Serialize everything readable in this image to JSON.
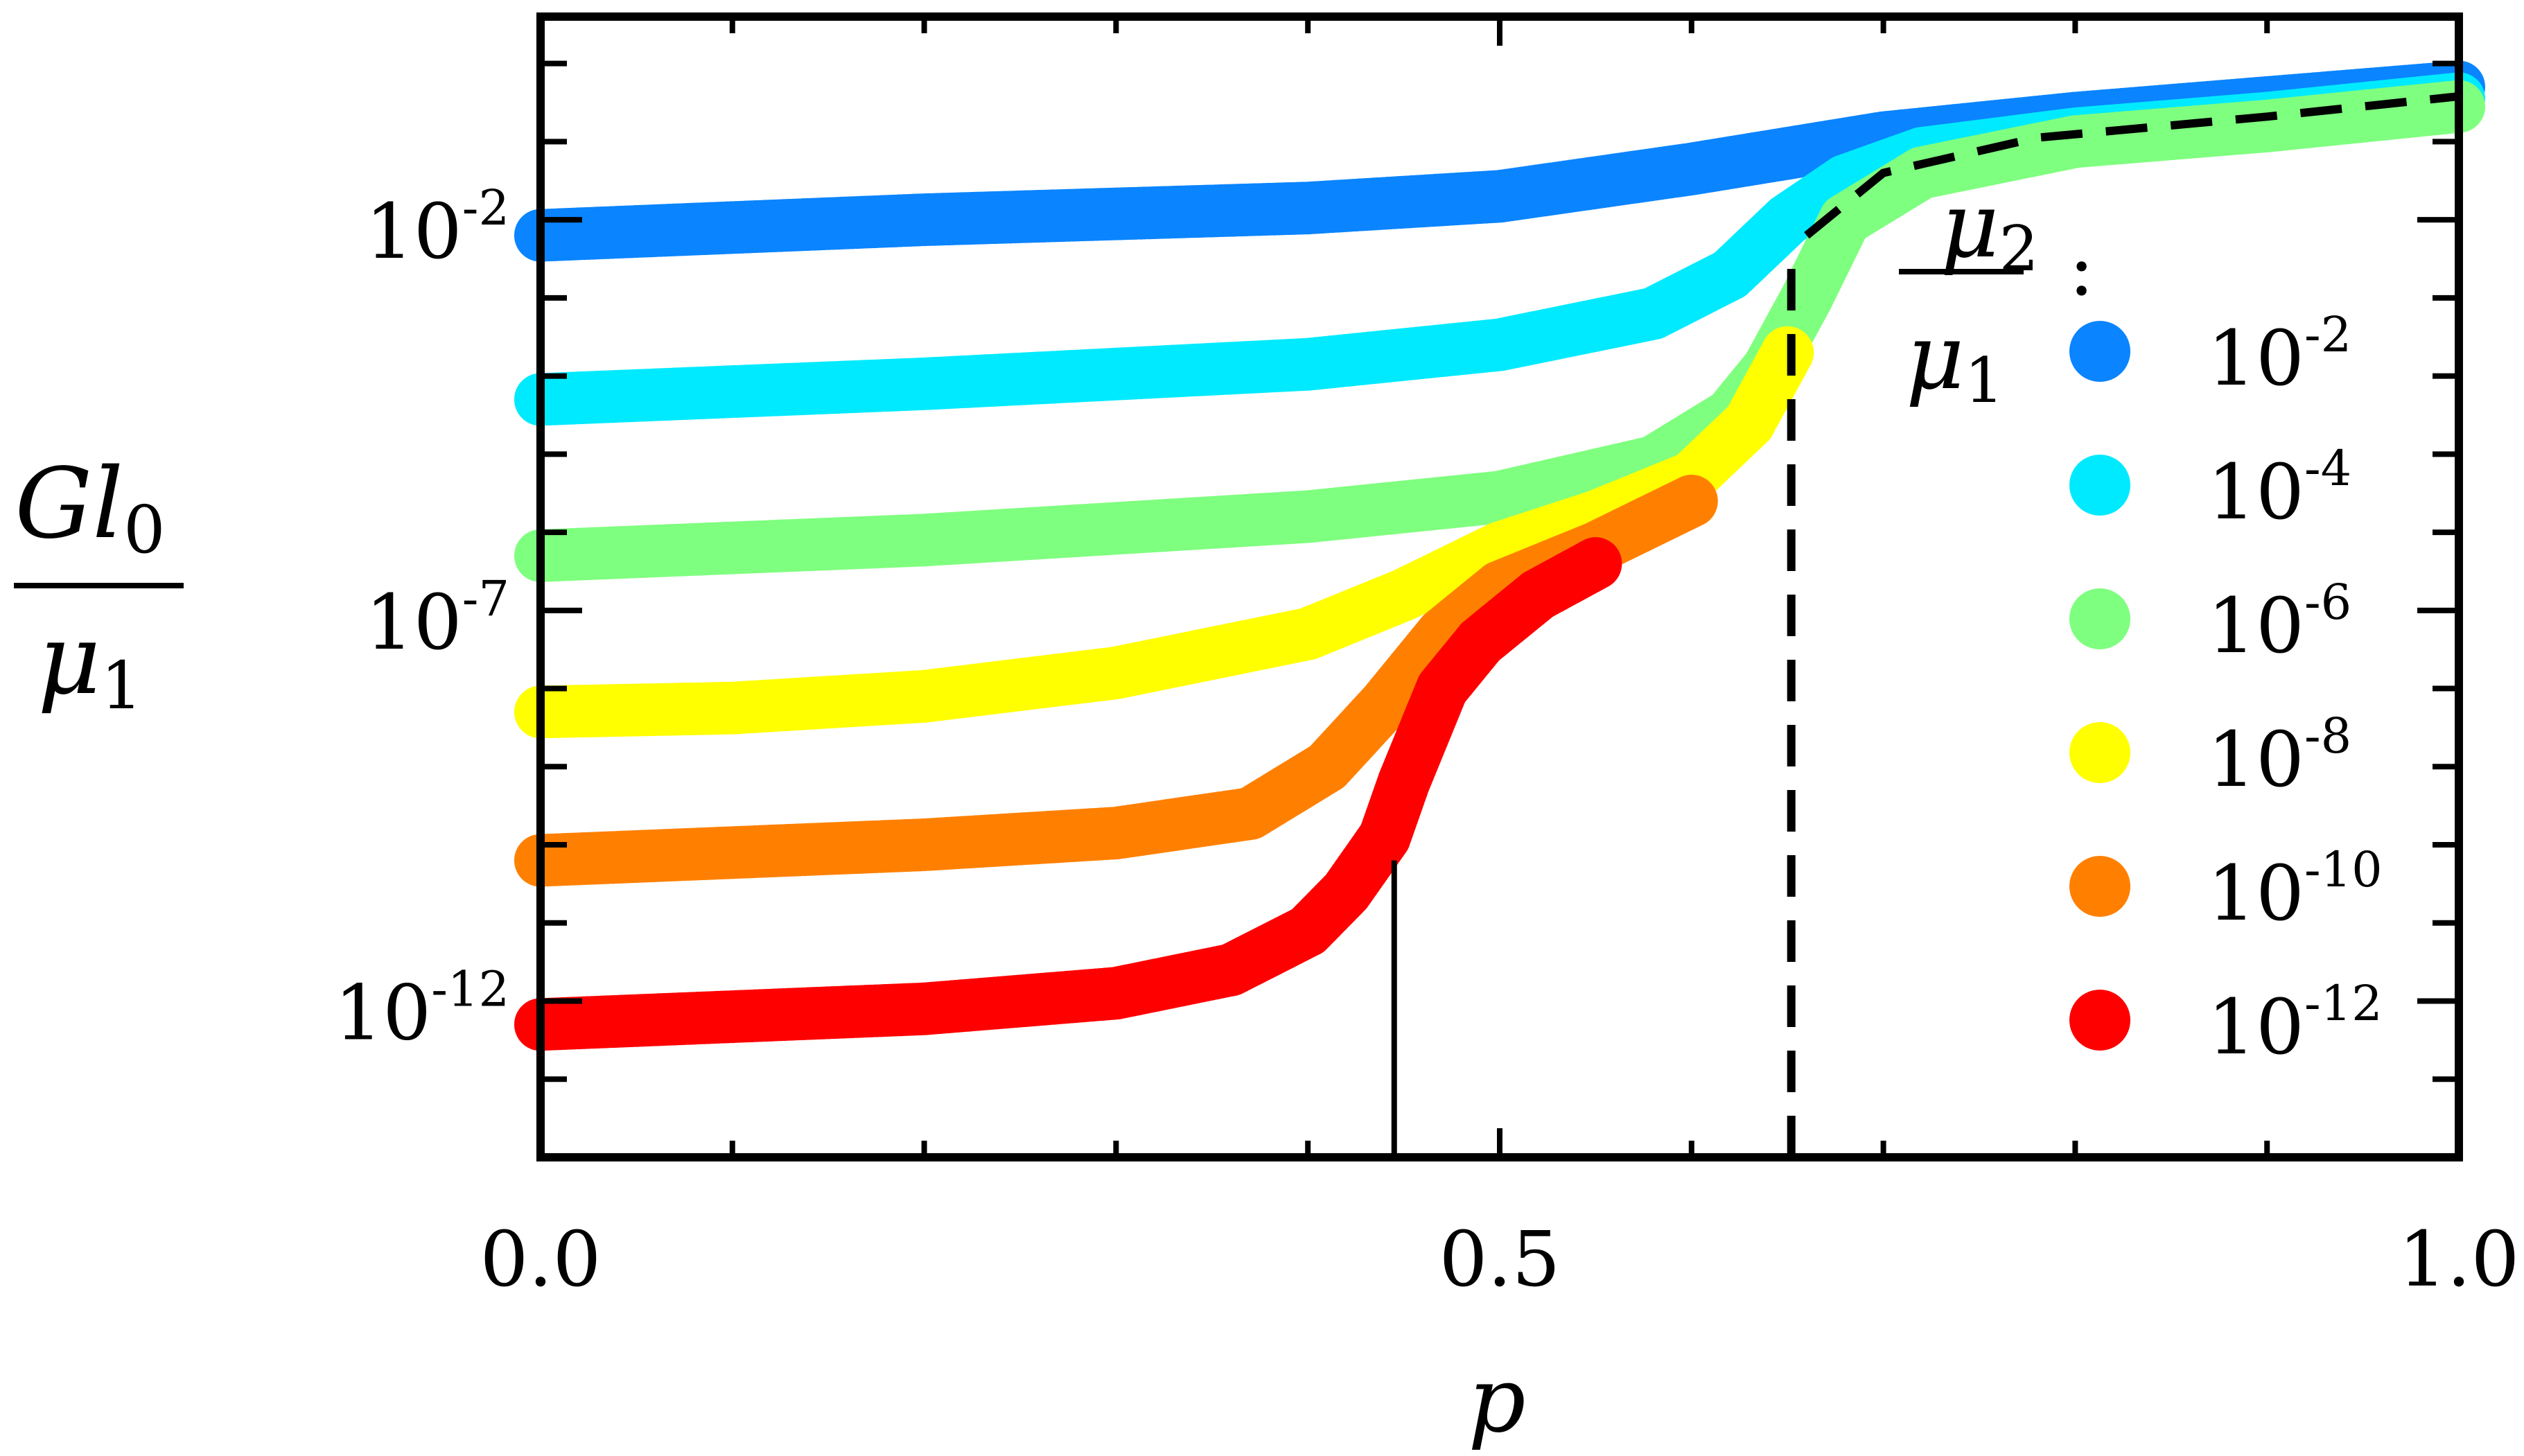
{
  "chart_data": {
    "type": "scatter",
    "xlabel": "p",
    "ylabel_numerator": "Gl",
    "ylabel_numerator_sub": "0",
    "ylabel_denominator": "μ",
    "ylabel_denominator_sub": "1",
    "yscale": "log",
    "xlim": [
      0.0,
      1.0
    ],
    "ylim_log10": [
      -14.0,
      0.6
    ],
    "xticks": [
      {
        "value": 0.0,
        "label": "0.0"
      },
      {
        "value": 0.5,
        "label": "0.5"
      },
      {
        "value": 1.0,
        "label": "1.0"
      }
    ],
    "yticks": [
      {
        "exp": -12,
        "label_base": "10",
        "label_exp": "-12"
      },
      {
        "exp": -7,
        "label_base": "10",
        "label_exp": "-7"
      },
      {
        "exp": -2,
        "label_base": "10",
        "label_exp": "-2"
      }
    ],
    "legend": {
      "title_numerator": "μ",
      "title_numerator_sub": "2",
      "title_denominator": "μ",
      "title_denominator_sub": "1",
      "title_suffix": ":",
      "placement": "right"
    },
    "series": [
      {
        "name_base": "10",
        "name_exp": "-2",
        "color": "#0a84ff",
        "points": [
          [
            0.0,
            -2.2
          ],
          [
            0.2,
            -2.0
          ],
          [
            0.4,
            -1.85
          ],
          [
            0.5,
            -1.7
          ],
          [
            0.6,
            -1.35
          ],
          [
            0.65,
            -1.15
          ],
          [
            0.7,
            -0.95
          ],
          [
            0.8,
            -0.7
          ],
          [
            0.9,
            -0.5
          ],
          [
            1.0,
            -0.3
          ]
        ]
      },
      {
        "name_base": "10",
        "name_exp": "-4",
        "color": "#00eaff",
        "points": [
          [
            0.0,
            -4.3
          ],
          [
            0.2,
            -4.1
          ],
          [
            0.4,
            -3.85
          ],
          [
            0.5,
            -3.6
          ],
          [
            0.58,
            -3.2
          ],
          [
            0.62,
            -2.7
          ],
          [
            0.65,
            -2.0
          ],
          [
            0.68,
            -1.5
          ],
          [
            0.72,
            -1.15
          ],
          [
            0.8,
            -0.9
          ],
          [
            0.9,
            -0.7
          ],
          [
            1.0,
            -0.45
          ]
        ]
      },
      {
        "name_base": "10",
        "name_exp": "-6",
        "color": "#7fff7f",
        "points": [
          [
            0.0,
            -6.3
          ],
          [
            0.2,
            -6.1
          ],
          [
            0.4,
            -5.8
          ],
          [
            0.5,
            -5.55
          ],
          [
            0.58,
            -5.1
          ],
          [
            0.62,
            -4.5
          ],
          [
            0.64,
            -3.9
          ],
          [
            0.66,
            -3.0
          ],
          [
            0.68,
            -2.0
          ],
          [
            0.72,
            -1.4
          ],
          [
            0.8,
            -1.0
          ],
          [
            0.9,
            -0.8
          ],
          [
            1.0,
            -0.55
          ]
        ]
      },
      {
        "name_base": "10",
        "name_exp": "-8",
        "color": "#ffff00",
        "points": [
          [
            0.0,
            -8.3
          ],
          [
            0.1,
            -8.25
          ],
          [
            0.2,
            -8.1
          ],
          [
            0.3,
            -7.8
          ],
          [
            0.4,
            -7.3
          ],
          [
            0.45,
            -6.8
          ],
          [
            0.5,
            -6.2
          ],
          [
            0.55,
            -5.8
          ],
          [
            0.6,
            -5.3
          ],
          [
            0.63,
            -4.6
          ],
          [
            0.65,
            -3.7
          ]
        ]
      },
      {
        "name_base": "10",
        "name_exp": "-10",
        "color": "#ff8000",
        "points": [
          [
            0.0,
            -10.2
          ],
          [
            0.1,
            -10.1
          ],
          [
            0.2,
            -10.0
          ],
          [
            0.3,
            -9.85
          ],
          [
            0.37,
            -9.6
          ],
          [
            0.41,
            -9.0
          ],
          [
            0.44,
            -8.2
          ],
          [
            0.47,
            -7.3
          ],
          [
            0.5,
            -6.7
          ],
          [
            0.55,
            -6.2
          ],
          [
            0.6,
            -5.6
          ]
        ]
      },
      {
        "name_base": "10",
        "name_exp": "-12",
        "color": "#ff0000",
        "points": [
          [
            0.0,
            -12.3
          ],
          [
            0.1,
            -12.2
          ],
          [
            0.2,
            -12.1
          ],
          [
            0.3,
            -11.9
          ],
          [
            0.36,
            -11.6
          ],
          [
            0.4,
            -11.1
          ],
          [
            0.42,
            -10.6
          ],
          [
            0.44,
            -9.9
          ],
          [
            0.45,
            -9.2
          ],
          [
            0.46,
            -8.6
          ],
          [
            0.47,
            -8.0
          ],
          [
            0.49,
            -7.4
          ],
          [
            0.52,
            -6.8
          ],
          [
            0.55,
            -6.4
          ]
        ]
      }
    ],
    "reference_lines": [
      {
        "style": "solid",
        "x": 0.445,
        "y_from_log10": -14.0,
        "y_to_log10": -10.2
      },
      {
        "style": "dashed",
        "x": 0.652,
        "y_from_log10": -14.0,
        "y_to_log10": -2.6
      },
      {
        "style": "dashed",
        "points": [
          [
            0.66,
            -2.2
          ],
          [
            0.7,
            -1.4
          ],
          [
            0.78,
            -0.95
          ],
          [
            0.9,
            -0.68
          ],
          [
            1.0,
            -0.42
          ]
        ]
      }
    ]
  }
}
